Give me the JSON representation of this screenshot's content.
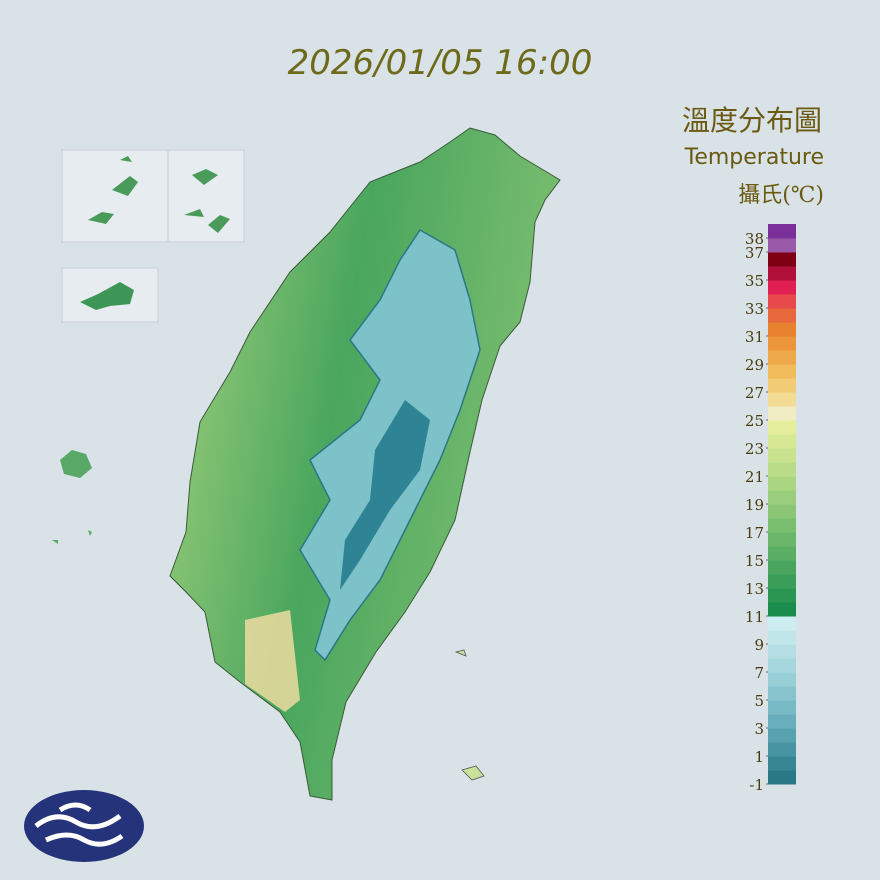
{
  "timestamp": "2026/01/05 16:00",
  "legend": {
    "title": "溫度分布圖",
    "subtitle": "Temperature",
    "unit": "攝氏(℃)",
    "ticks": [
      38,
      37,
      35,
      33,
      31,
      29,
      27,
      25,
      23,
      21,
      19,
      17,
      15,
      13,
      11,
      9,
      7,
      5,
      3,
      1,
      -1
    ],
    "bins": [
      -1,
      0,
      1,
      2,
      3,
      4,
      5,
      6,
      7,
      8,
      9,
      10,
      11,
      12,
      13,
      14,
      15,
      16,
      17,
      18,
      19,
      20,
      21,
      22,
      23,
      24,
      25,
      26,
      27,
      28,
      29,
      30,
      31,
      32,
      33,
      34,
      35,
      36,
      37,
      38
    ],
    "colors": [
      "#2a7886",
      "#388694",
      "#4894a2",
      "#58a2b0",
      "#68aebc",
      "#78bac6",
      "#88c4ce",
      "#98ced6",
      "#a6d6de",
      "#b4dee4",
      "#c0e6ea",
      "#cceef0",
      "#1a8c4c",
      "#2a9652",
      "#3a9e58",
      "#4aa65e",
      "#5aae64",
      "#6ab66a",
      "#7abe70",
      "#8ac676",
      "#9ace7c",
      "#aad682",
      "#badc88",
      "#c8e28e",
      "#d6e894",
      "#e4ee9c",
      "#f0ecc4",
      "#f2dc94",
      "#f2cc74",
      "#f0bc5c",
      "#eeaa4a",
      "#ec963c",
      "#e8822e",
      "#e8683c",
      "#e84a4c",
      "#e02052",
      "#b0103a",
      "#7e0012",
      "#9a5aa8",
      "#7a3098"
    ]
  }
}
